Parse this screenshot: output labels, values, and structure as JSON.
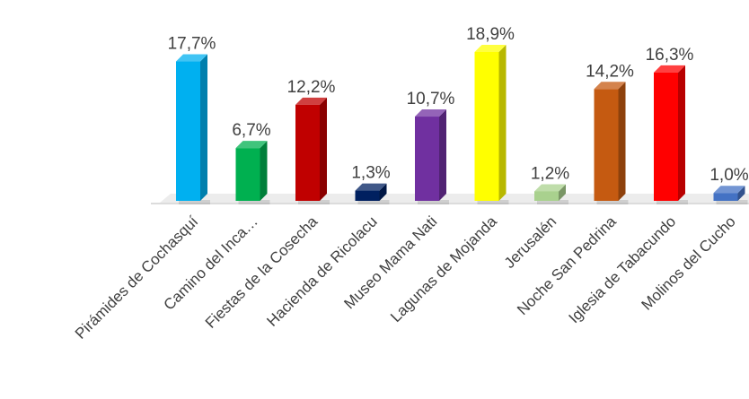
{
  "chart_data": {
    "type": "bar",
    "categories": [
      "Pirámides de Cochasquí",
      "Camino del Inca…",
      "Fiestas de la Cosecha",
      "Hacienda de Ricolacu",
      "Museo Mama Nati",
      "Lagunas de Mojanda",
      "Jerusalén",
      "Noche San Pedrina",
      "Iglesia de Tabacundo",
      "Molinos del Cucho"
    ],
    "values": [
      17.7,
      6.7,
      12.2,
      1.3,
      10.7,
      18.9,
      1.2,
      14.2,
      16.3,
      1.0
    ],
    "value_labels": [
      "17,7%",
      "6,7%",
      "12,2%",
      "1,3%",
      "10,7%",
      "18,9%",
      "1,2%",
      "14,2%",
      "16,3%",
      "1,0%"
    ],
    "colors": [
      "#00B0F0",
      "#00B050",
      "#C00000",
      "#002060",
      "#7030A0",
      "#FFFF00",
      "#A9D18E",
      "#C55A11",
      "#FF0000",
      "#4472C4"
    ],
    "ylim": [
      0,
      20
    ],
    "grid": false,
    "legend": false,
    "title": "",
    "xlabel": "",
    "ylabel": ""
  }
}
